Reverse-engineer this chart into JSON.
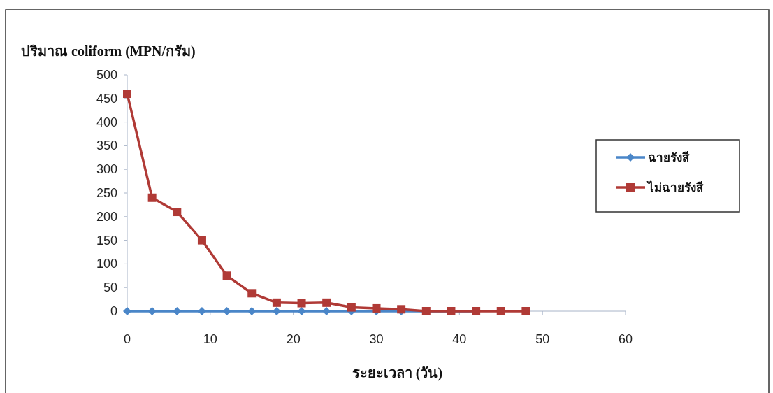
{
  "chart_data": {
    "type": "line",
    "xlabel": "ระยะเวลา (วัน)",
    "ylabel": "ปริมาณ coliform (MPN/กรัม)",
    "x": [
      0,
      3,
      6,
      9,
      12,
      15,
      18,
      21,
      24,
      27,
      30,
      33,
      36,
      39,
      42,
      45,
      48
    ],
    "series": [
      {
        "name": "ฉายรังสี",
        "color": "#4a86c8",
        "marker": "diamond",
        "values": [
          0,
          0,
          0,
          0,
          0,
          0,
          0,
          0,
          0,
          0,
          0,
          0,
          0,
          0,
          0,
          null,
          null
        ]
      },
      {
        "name": "ไม่ฉายรังสี",
        "color": "#b03a36",
        "marker": "square",
        "values": [
          460,
          240,
          210,
          150,
          75,
          38,
          18,
          17,
          18,
          8,
          6,
          4,
          0,
          0,
          0,
          0,
          0
        ]
      }
    ],
    "xlim": [
      0,
      60
    ],
    "xticks": [
      0,
      10,
      20,
      30,
      40,
      50,
      60
    ],
    "ylim": [
      0,
      500
    ],
    "yticks": [
      0,
      50,
      100,
      150,
      200,
      250,
      300,
      350,
      400,
      450,
      500
    ],
    "grid": false,
    "legend": "right",
    "line_style": "solid"
  }
}
